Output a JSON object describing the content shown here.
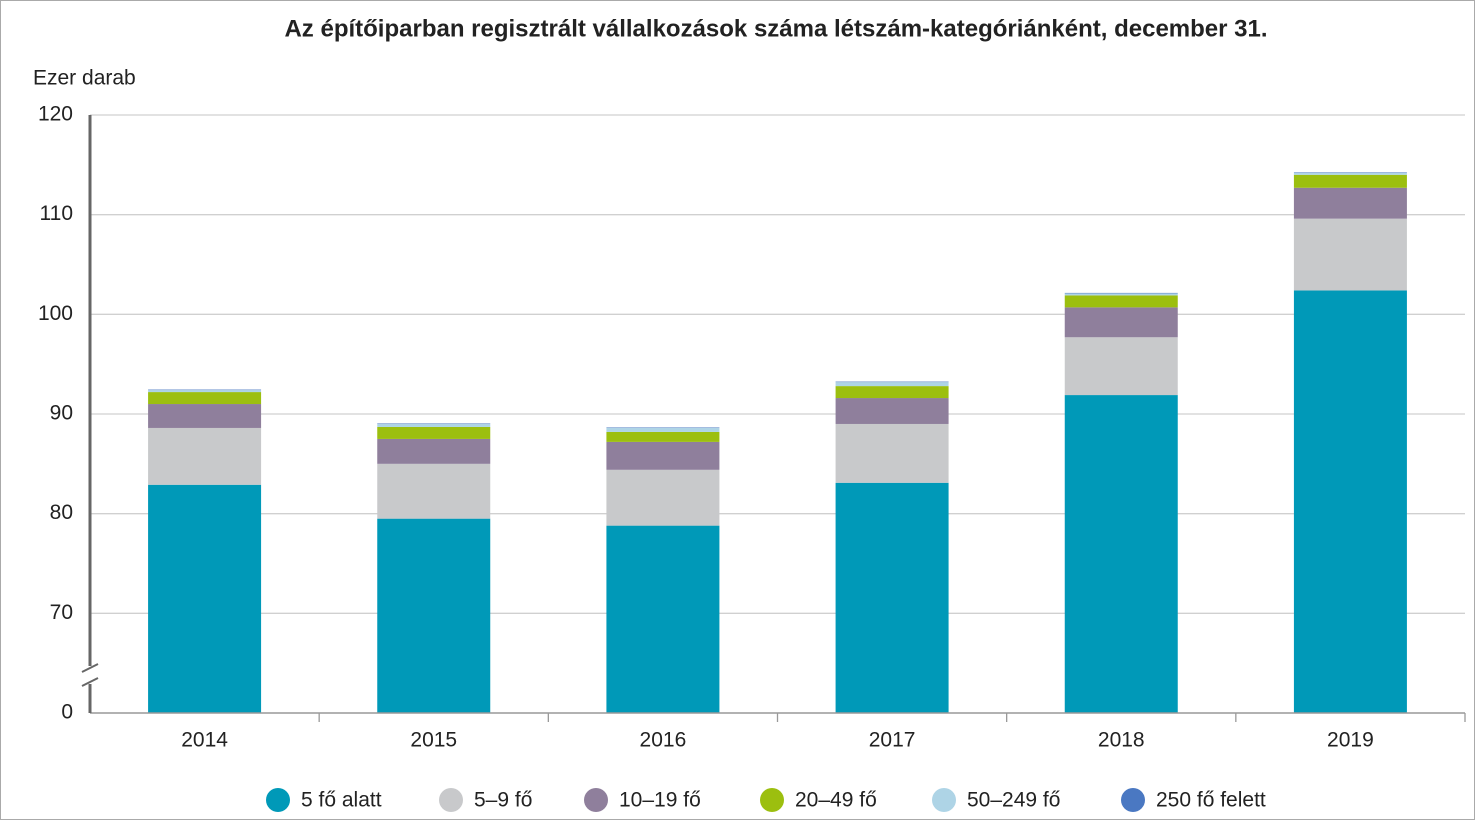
{
  "chart_data": {
    "type": "stacked_bar",
    "title": "Az építőiparban regisztrált vállalkozások száma létszám-kategóriánként, december 31.",
    "y_label": "Ezer darab",
    "categories": [
      "2014",
      "2015",
      "2016",
      "2017",
      "2018",
      "2019"
    ],
    "series": [
      {
        "name": "5 fő alatt",
        "color": "#0099b8",
        "values": [
          82.9,
          79.5,
          78.8,
          83.1,
          91.9,
          102.4
        ]
      },
      {
        "name": "5–9 fő",
        "color": "#c8c9cb",
        "values": [
          5.7,
          5.5,
          5.6,
          5.9,
          5.8,
          7.2
        ]
      },
      {
        "name": "10–19 fő",
        "color": "#8f7f9c",
        "values": [
          2.4,
          2.5,
          2.8,
          2.6,
          3.0,
          3.1
        ]
      },
      {
        "name": "20–49 fő",
        "color": "#9cbf0f",
        "values": [
          1.2,
          1.2,
          1.0,
          1.2,
          1.2,
          1.3
        ]
      },
      {
        "name": "50–249 fő",
        "color": "#aed4e6",
        "values": [
          0.2,
          0.3,
          0.4,
          0.4,
          0.2,
          0.2
        ]
      },
      {
        "name": "250 fő felett",
        "color": "#4a78c2",
        "values": [
          0.05,
          0.05,
          0.05,
          0.05,
          0.05,
          0.05
        ]
      }
    ],
    "ylim": [
      0,
      120
    ],
    "y_break": [
      0,
      60
    ],
    "yticks": [
      0,
      70,
      80,
      90,
      100,
      110,
      120
    ],
    "grid": true,
    "legend": "bottom"
  }
}
